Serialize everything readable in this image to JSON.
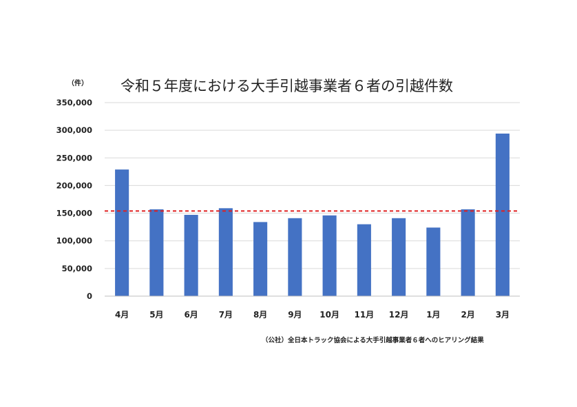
{
  "chart_data": {
    "type": "bar",
    "title": "令和５年度における大手引越事業者６者の引越件数",
    "unit_label": "（件）",
    "source": "（公社）全日本トラック協会による大手引越事業者６者へのヒアリング結果",
    "categories": [
      "4月",
      "5月",
      "6月",
      "7月",
      "8月",
      "9月",
      "10月",
      "11月",
      "12月",
      "1月",
      "2月",
      "3月"
    ],
    "values": [
      229000,
      157000,
      147000,
      159000,
      134000,
      141000,
      146000,
      130000,
      141000,
      124000,
      157000,
      294000
    ],
    "yticks": [
      "0",
      "50,000",
      "100,000",
      "150,000",
      "200,000",
      "250,000",
      "300,000",
      "350,000"
    ],
    "ylim": [
      0,
      350000
    ],
    "reference_line": 154000,
    "grid": true,
    "legend": "none",
    "colors": {
      "bar": "#4472C4",
      "reference_line": "#E02020",
      "grid": "#D9D9D9",
      "axis": "#BFBFBF"
    }
  }
}
